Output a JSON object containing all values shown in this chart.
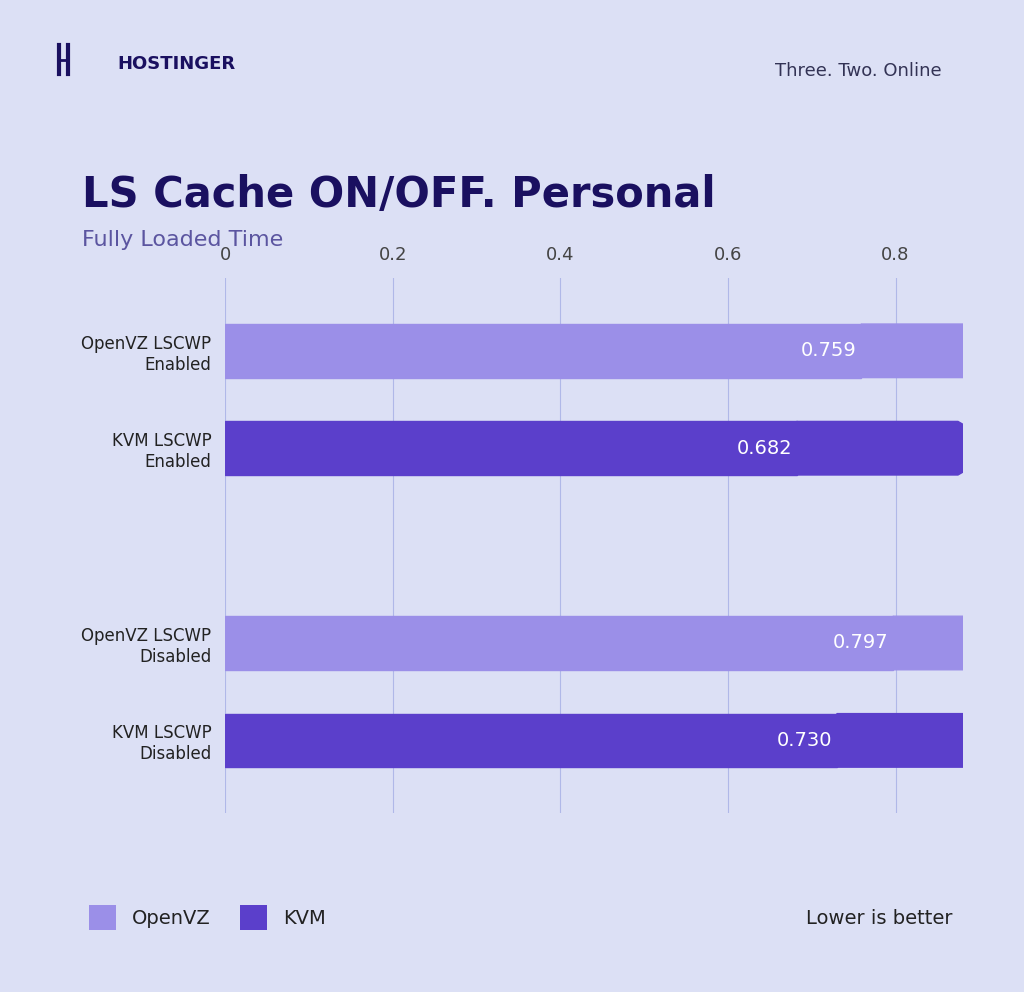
{
  "title": "LS Cache ON/OFF. Personal",
  "subtitle": "Fully Loaded Time",
  "branding": "Three. Two. Online",
  "background_color": "#dce0f5",
  "categories": [
    "OpenVZ LSCWP\nEnabled",
    "KVM LSCWP\nEnabled",
    "",
    "OpenVZ LSCWP\nDisabled",
    "KVM LSCWP\nDisabled"
  ],
  "values": [
    0.759,
    0.682,
    0,
    0.797,
    0.73
  ],
  "colors": [
    "#9b8fe8",
    "#5b3fcb",
    "#dce0f5",
    "#9b8fe8",
    "#5b3fcb"
  ],
  "xlim": [
    0,
    0.88
  ],
  "xticks": [
    0,
    0.2,
    0.4,
    0.6,
    0.8
  ],
  "value_labels": [
    "0.759",
    "0.682",
    "",
    "0.797",
    "0.730"
  ],
  "title_color": "#1a1060",
  "subtitle_color": "#5b55a0",
  "legend_openvz_color": "#9b8fe8",
  "legend_kvm_color": "#5b3fcb",
  "legend_openvz_label": "OpenVZ",
  "legend_kvm_label": "KVM",
  "lower_is_better_text": "Lower is better",
  "hostinger_text": "HOSTINGER",
  "bar_height": 0.55,
  "grid_color": "#b0b8e8"
}
